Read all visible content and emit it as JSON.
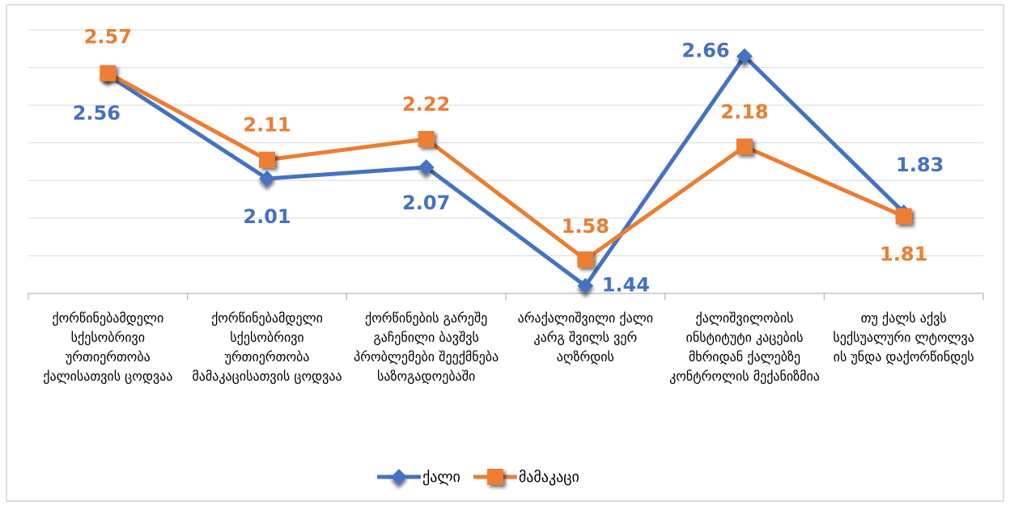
{
  "chart_data": {
    "type": "line",
    "categories": [
      "ქორწინებამდელი სქესობრივი ურთიერთობა ქალისათვის ცოდვაა",
      "ქორწინებამდელი სქესობრივი ურთიერთობა მამაკაცისათვის ცოდვაა",
      "ქორწინების გარეშე გაჩენილი ბავშვს პრობლემები შეექმნება საზოგადოებაში",
      "არაქალიშვილი ქალი კარგ შვილს ვერ აღზრდის",
      "ქალიშვილობის ინსტიტუტი კაცების მხრიდან ქალებზე კონტროლის მექანიზმია",
      "თუ ქალს აქვს სექსუალური ლტოლვა ის უნდა დაქორწინდეს"
    ],
    "series": [
      {
        "name": "ქალი",
        "color": "#4472c4",
        "values": [
          2.56,
          2.01,
          2.07,
          1.44,
          2.66,
          1.83
        ]
      },
      {
        "name": "მამაკაცი",
        "color": "#ed7d31",
        "values": [
          2.57,
          2.11,
          2.22,
          1.58,
          2.18,
          1.81
        ]
      }
    ],
    "ylim": [
      1.4,
      2.8
    ],
    "yticks": [
      1.4,
      1.6,
      1.8,
      2.0,
      2.2,
      2.4,
      2.6,
      2.8
    ],
    "grid": true,
    "legend": "bottom"
  }
}
